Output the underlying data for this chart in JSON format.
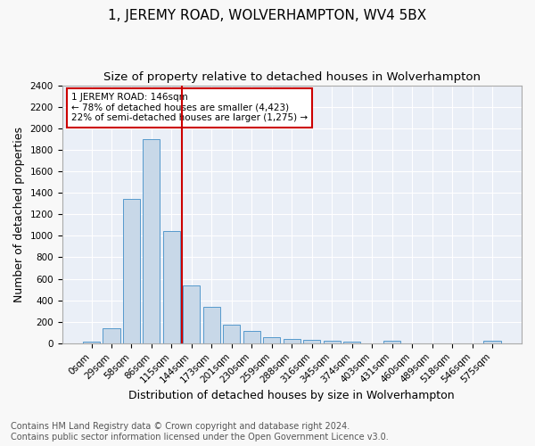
{
  "title": "1, JEREMY ROAD, WOLVERHAMPTON, WV4 5BX",
  "subtitle": "Size of property relative to detached houses in Wolverhampton",
  "xlabel": "Distribution of detached houses by size in Wolverhampton",
  "ylabel": "Number of detached properties",
  "footer_line1": "Contains HM Land Registry data © Crown copyright and database right 2024.",
  "footer_line2": "Contains public sector information licensed under the Open Government Licence v3.0.",
  "categories": [
    "0sqm",
    "29sqm",
    "58sqm",
    "86sqm",
    "115sqm",
    "144sqm",
    "173sqm",
    "201sqm",
    "230sqm",
    "259sqm",
    "288sqm",
    "316sqm",
    "345sqm",
    "374sqm",
    "403sqm",
    "431sqm",
    "460sqm",
    "489sqm",
    "518sqm",
    "546sqm",
    "575sqm"
  ],
  "values": [
    18,
    140,
    1340,
    1900,
    1045,
    540,
    340,
    175,
    115,
    58,
    38,
    32,
    22,
    15,
    0,
    20,
    0,
    0,
    0,
    0,
    20
  ],
  "bar_color": "#c8d8e8",
  "bar_edge_color": "#5599cc",
  "vline_color": "#cc0000",
  "annotation_text": "1 JEREMY ROAD: 146sqm\n← 78% of detached houses are smaller (4,423)\n22% of semi-detached houses are larger (1,275) →",
  "annotation_box_color": "#ffffff",
  "annotation_box_edge": "#cc0000",
  "ylim": [
    0,
    2400
  ],
  "yticks": [
    0,
    200,
    400,
    600,
    800,
    1000,
    1200,
    1400,
    1600,
    1800,
    2000,
    2200,
    2400
  ],
  "background_color": "#eaeff7",
  "grid_color": "#ffffff",
  "fig_background": "#f8f8f8",
  "title_fontsize": 11,
  "subtitle_fontsize": 9.5,
  "axis_label_fontsize": 9,
  "tick_fontsize": 7.5,
  "footer_fontsize": 7
}
